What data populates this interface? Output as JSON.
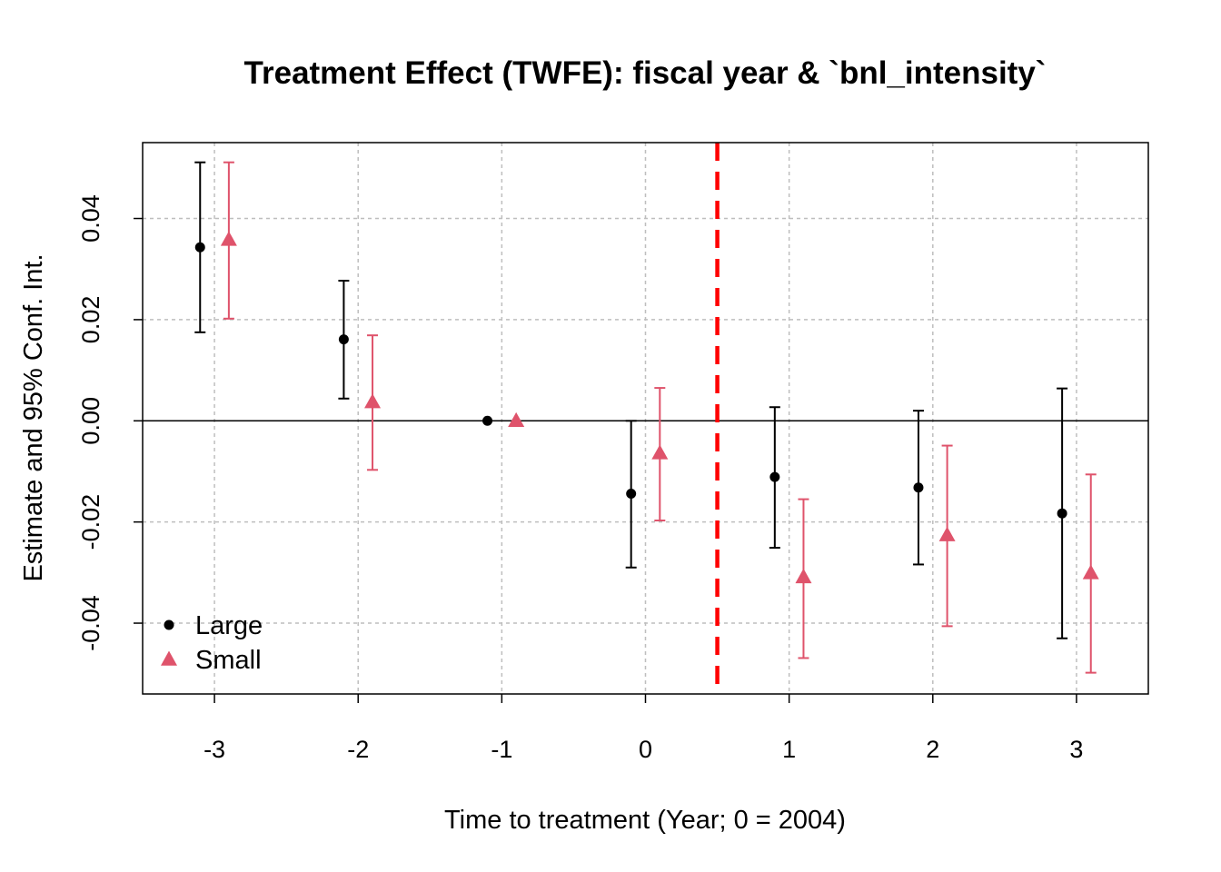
{
  "chart_data": {
    "type": "scatter",
    "title": "Treatment Effect (TWFE): fiscal year & `bnl_intensity`",
    "xlabel": "Time to treatment (Year; 0 = 2004)",
    "ylabel": "Estimate and 95% Conf. Int.",
    "x_ticks": [
      "-3",
      "-2",
      "-1",
      "0",
      "1",
      "2",
      "3"
    ],
    "y_ticks": [
      "-0.04",
      "-0.02",
      "0.00",
      "0.02",
      "0.04"
    ],
    "xlim": [
      -3.5,
      3.5
    ],
    "ylim": [
      -0.054,
      0.055
    ],
    "grid": true,
    "zero_line": 0,
    "treatment_line_x": 0.5,
    "legend_position": "bottom-left",
    "series": [
      {
        "name": "Large",
        "color": "#000000",
        "marker": "circle",
        "x_offset": -0.1,
        "points": [
          {
            "x": -3,
            "estimate": 0.0343,
            "ci_low": 0.0175,
            "ci_high": 0.0511
          },
          {
            "x": -2,
            "estimate": 0.0161,
            "ci_low": 0.0044,
            "ci_high": 0.0277
          },
          {
            "x": -1,
            "estimate": 0.0,
            "ci_low": null,
            "ci_high": null
          },
          {
            "x": 0,
            "estimate": -0.0144,
            "ci_low": -0.029,
            "ci_high": 0.0
          },
          {
            "x": 1,
            "estimate": -0.0111,
            "ci_low": -0.0251,
            "ci_high": 0.0027
          },
          {
            "x": 2,
            "estimate": -0.0132,
            "ci_low": -0.0284,
            "ci_high": 0.002
          },
          {
            "x": 3,
            "estimate": -0.0183,
            "ci_low": -0.043,
            "ci_high": 0.0064
          }
        ]
      },
      {
        "name": "Small",
        "color": "#DF536B",
        "marker": "triangle",
        "x_offset": 0.1,
        "points": [
          {
            "x": -3,
            "estimate": 0.0358,
            "ci_low": 0.0202,
            "ci_high": 0.0511
          },
          {
            "x": -2,
            "estimate": 0.0037,
            "ci_low": -0.0097,
            "ci_high": 0.0169
          },
          {
            "x": -1,
            "estimate": 0.0,
            "ci_low": null,
            "ci_high": null
          },
          {
            "x": 0,
            "estimate": -0.0064,
            "ci_low": -0.0197,
            "ci_high": 0.0065
          },
          {
            "x": 1,
            "estimate": -0.0309,
            "ci_low": -0.0469,
            "ci_high": -0.0155
          },
          {
            "x": 2,
            "estimate": -0.0226,
            "ci_low": -0.0406,
            "ci_high": -0.0049
          },
          {
            "x": 3,
            "estimate": -0.0301,
            "ci_low": -0.0498,
            "ci_high": -0.0106
          }
        ]
      }
    ],
    "colors": {
      "axis": "#000000",
      "grid": "#bebebe",
      "treatment_line": "#ff0000"
    }
  }
}
